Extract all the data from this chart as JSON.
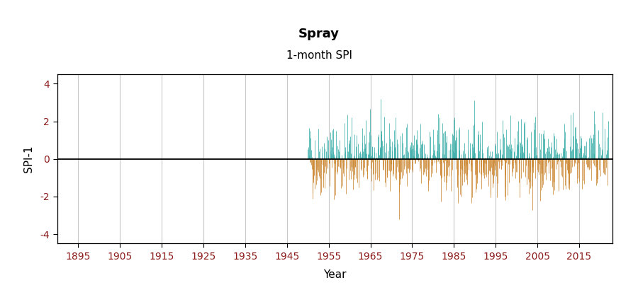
{
  "title": "Spray",
  "subtitle": "1-month SPI",
  "ylabel": "SPI-1",
  "xlabel": "Year",
  "xlim": [
    1890,
    2023
  ],
  "ylim": [
    -4.5,
    4.5
  ],
  "yticks": [
    -4,
    -2,
    0,
    2,
    4
  ],
  "xticks": [
    1895,
    1905,
    1915,
    1925,
    1935,
    1945,
    1955,
    1965,
    1975,
    1985,
    1995,
    2005,
    2015
  ],
  "data_start_year": 1950,
  "data_end_year": 2021,
  "color_positive": "#3aada8",
  "color_negative": "#cc8833",
  "background_color": "#ffffff",
  "grid_color": "#c8c8c8",
  "tick_label_color": "#8B1A1A",
  "axis_label_color": "#000000",
  "seed": 42,
  "n_months": 864,
  "title_fontsize": 13,
  "subtitle_fontsize": 11,
  "tick_fontsize": 10,
  "label_fontsize": 11
}
